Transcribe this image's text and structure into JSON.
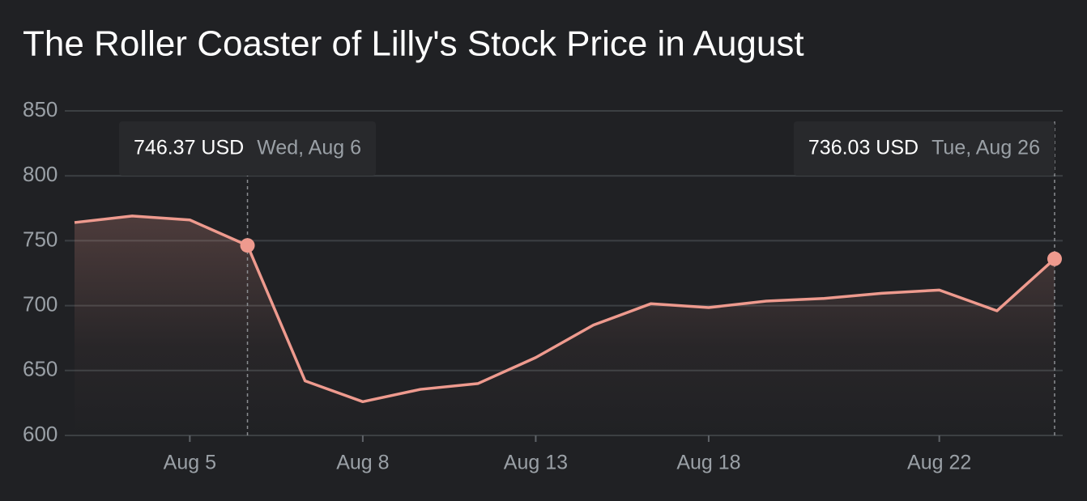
{
  "chart_data": {
    "type": "line",
    "title": "The Roller Coaster of Lilly's Stock Price in August",
    "categories": [
      null,
      null,
      "Aug 5",
      null,
      null,
      "Aug 8",
      null,
      null,
      "Aug 13",
      null,
      null,
      "Aug 18",
      null,
      null,
      null,
      "Aug 22",
      null,
      null
    ],
    "values": [
      764,
      769,
      766,
      746.37,
      642,
      626,
      635.5,
      640,
      660,
      685,
      701.5,
      698.5,
      703.5,
      705.5,
      709.5,
      712,
      696,
      736.03
    ],
    "value_labels": [
      null,
      null,
      null,
      "746.37 USD",
      null,
      null,
      null,
      null,
      null,
      null,
      null,
      null,
      null,
      null,
      null,
      null,
      null,
      "736.03 USD"
    ],
    "point_dates": [
      null,
      null,
      null,
      "Wed, Aug 6",
      null,
      null,
      null,
      null,
      null,
      null,
      null,
      null,
      null,
      null,
      null,
      null,
      null,
      "Tue, Aug 26"
    ],
    "color": "#ee9a8e",
    "ylim": [
      600,
      850
    ],
    "yticks": [
      600,
      650,
      700,
      750,
      800,
      850
    ],
    "grid": true
  }
}
